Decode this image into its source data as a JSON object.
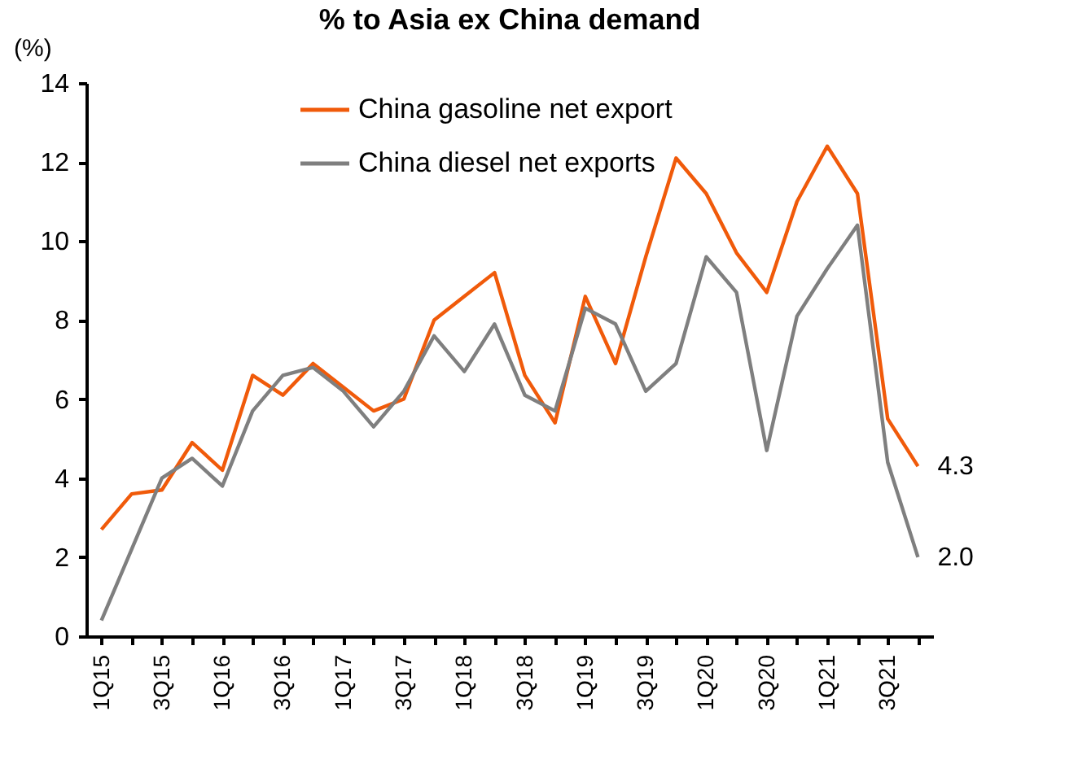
{
  "chart_data": {
    "type": "line",
    "title": "% to Asia ex China demand",
    "ylabel": "(%)",
    "categories": [
      "1Q15",
      null,
      "3Q15",
      null,
      "1Q16",
      null,
      "3Q16",
      null,
      "1Q17",
      null,
      "3Q17",
      null,
      "1Q18",
      null,
      "3Q18",
      null,
      "1Q19",
      null,
      "3Q19",
      null,
      "1Q20",
      null,
      "3Q20",
      null,
      "1Q21",
      null,
      "3Q21",
      null
    ],
    "series": [
      {
        "name": "China gasoline net export",
        "color": "#f05a0a",
        "values": [
          2.7,
          3.6,
          3.7,
          4.9,
          4.2,
          6.6,
          6.1,
          6.9,
          6.3,
          5.7,
          6.0,
          8.0,
          8.6,
          9.2,
          6.6,
          5.4,
          8.6,
          6.9,
          9.6,
          12.1,
          11.2,
          9.7,
          8.7,
          11.0,
          12.4,
          11.2,
          5.5,
          4.3
        ],
        "value_labels": [
          null,
          null,
          null,
          null,
          null,
          null,
          null,
          null,
          null,
          null,
          null,
          null,
          null,
          null,
          null,
          null,
          null,
          null,
          null,
          null,
          null,
          null,
          null,
          null,
          null,
          null,
          null,
          "4.3"
        ]
      },
      {
        "name": "China diesel net exports",
        "color": "#7f7f7f",
        "values": [
          0.4,
          2.2,
          4.0,
          4.5,
          3.8,
          5.7,
          6.6,
          6.8,
          6.2,
          5.3,
          6.2,
          7.6,
          6.7,
          7.9,
          6.1,
          5.7,
          8.3,
          7.9,
          6.2,
          6.9,
          9.6,
          8.7,
          4.7,
          8.1,
          9.3,
          10.4,
          4.4,
          2.0
        ],
        "value_labels": [
          null,
          null,
          null,
          null,
          null,
          null,
          null,
          null,
          null,
          null,
          null,
          null,
          null,
          null,
          null,
          null,
          null,
          null,
          null,
          null,
          null,
          null,
          null,
          null,
          null,
          null,
          null,
          "2.0"
        ]
      }
    ],
    "ylim": [
      0,
      14
    ],
    "yticks": [
      0,
      2,
      4,
      6,
      8,
      10,
      12,
      14
    ],
    "grid": false,
    "legend": "top",
    "marker": "none",
    "line_style": "solid"
  }
}
